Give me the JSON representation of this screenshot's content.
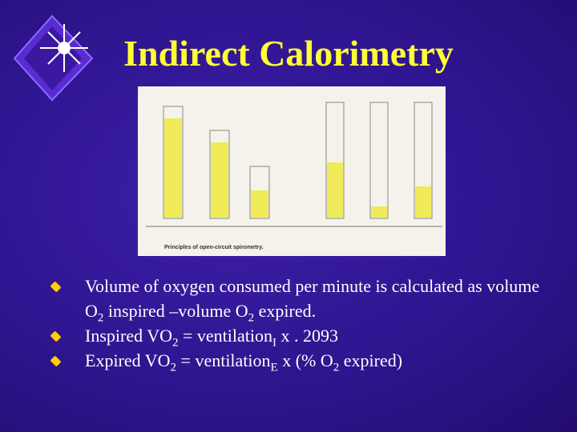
{
  "title": "Indirect Calorimetry",
  "figure": {
    "caption": "Principles of open-circuit spirometry."
  },
  "bullets": [
    {
      "parts": [
        {
          "text": "Volume of oxygen consumed per minute is calculated as volume O"
        },
        {
          "sub": "2"
        },
        {
          "text": " inspired –volume O"
        },
        {
          "sub": "2"
        },
        {
          "text": " expired."
        }
      ]
    },
    {
      "parts": [
        {
          "text": "Inspired VO"
        },
        {
          "sub": "2"
        },
        {
          "text": " = ventilation"
        },
        {
          "sub": "I"
        },
        {
          "text": " x . 2093"
        }
      ]
    },
    {
      "parts": [
        {
          "text": "Expired VO"
        },
        {
          "sub": "2"
        },
        {
          "text": " = ventilation"
        },
        {
          "sub": "E"
        },
        {
          "text": " x (% O"
        },
        {
          "sub": "2"
        },
        {
          "text": " expired)"
        }
      ]
    }
  ]
}
